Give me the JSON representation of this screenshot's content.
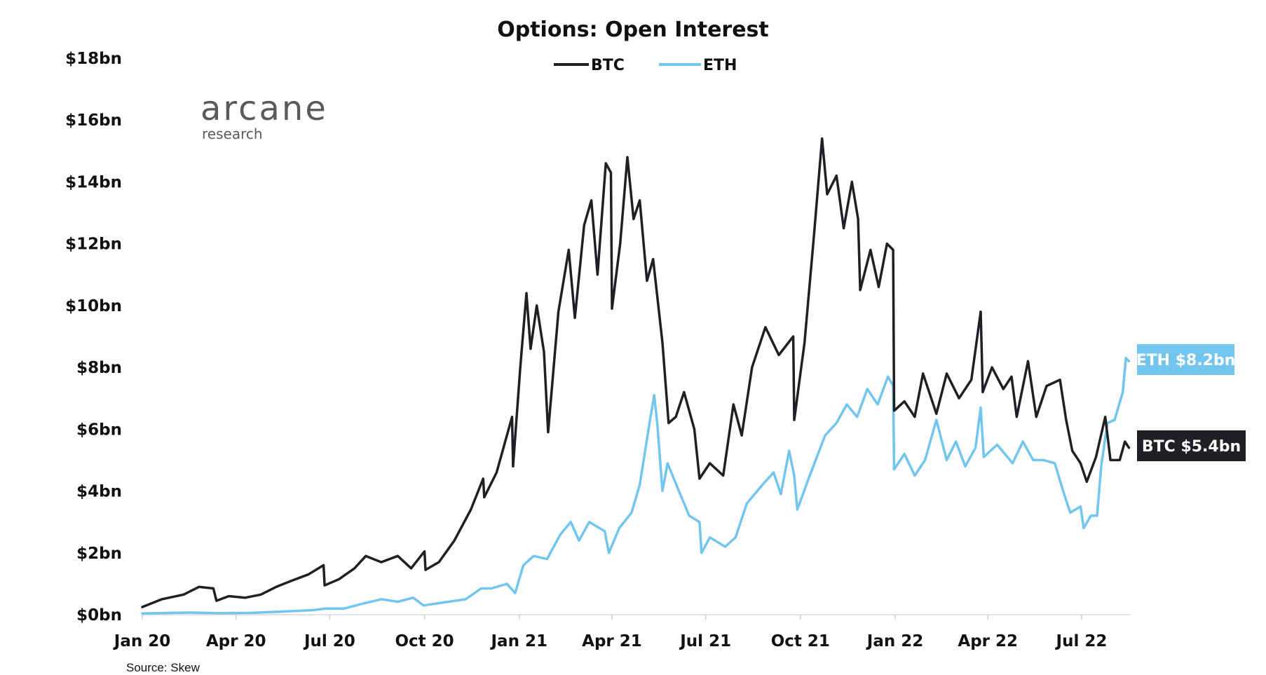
{
  "chart_data": {
    "type": "line",
    "title": "Options: Open Interest",
    "xlabel": "",
    "ylabel": "",
    "x_tick_labels": [
      "Jan 20",
      "Apr 20",
      "Jul 20",
      "Oct 20",
      "Jan 21",
      "Apr 21",
      "Jul 21",
      "Oct 21",
      "Jan 22",
      "Apr 22",
      "Jul 22"
    ],
    "y_tick_labels": [
      "$0bn",
      "$2bn",
      "$4bn",
      "$6bn",
      "$8bn",
      "$10bn",
      "$12bn",
      "$14bn",
      "$16bn",
      "$18bn"
    ],
    "y_ticks": [
      0,
      2,
      4,
      6,
      8,
      10,
      12,
      14,
      16,
      18
    ],
    "ylim": [
      0,
      18
    ],
    "xlim": [
      "2020-01-01",
      "2022-08-17"
    ],
    "grid": false,
    "legend_position": "top-center",
    "series": [
      {
        "name": "BTC",
        "color": "#1f2024",
        "end_label": "BTC $5.4bn",
        "points": [
          [
            "2020-01-01",
            0.25
          ],
          [
            "2020-01-20",
            0.5
          ],
          [
            "2020-02-10",
            0.65
          ],
          [
            "2020-02-25",
            0.9
          ],
          [
            "2020-03-10",
            0.85
          ],
          [
            "2020-03-13",
            0.45
          ],
          [
            "2020-03-25",
            0.6
          ],
          [
            "2020-04-10",
            0.55
          ],
          [
            "2020-04-25",
            0.65
          ],
          [
            "2020-05-10",
            0.9
          ],
          [
            "2020-05-25",
            1.1
          ],
          [
            "2020-06-10",
            1.3
          ],
          [
            "2020-06-25",
            1.6
          ],
          [
            "2020-06-26",
            0.95
          ],
          [
            "2020-07-10",
            1.15
          ],
          [
            "2020-07-25",
            1.5
          ],
          [
            "2020-08-05",
            1.9
          ],
          [
            "2020-08-20",
            1.7
          ],
          [
            "2020-09-05",
            1.9
          ],
          [
            "2020-09-18",
            1.5
          ],
          [
            "2020-10-01",
            2.05
          ],
          [
            "2020-10-02",
            1.45
          ],
          [
            "2020-10-15",
            1.7
          ],
          [
            "2020-10-30",
            2.4
          ],
          [
            "2020-11-15",
            3.4
          ],
          [
            "2020-11-27",
            4.4
          ],
          [
            "2020-11-28",
            3.8
          ],
          [
            "2020-12-10",
            4.6
          ],
          [
            "2020-12-25",
            6.4
          ],
          [
            "2020-12-26",
            4.8
          ],
          [
            "2021-01-02",
            8.0
          ],
          [
            "2021-01-08",
            10.4
          ],
          [
            "2021-01-12",
            8.6
          ],
          [
            "2021-01-18",
            10.0
          ],
          [
            "2021-01-25",
            8.5
          ],
          [
            "2021-01-29",
            5.9
          ],
          [
            "2021-02-08",
            9.8
          ],
          [
            "2021-02-18",
            11.8
          ],
          [
            "2021-02-24",
            9.6
          ],
          [
            "2021-03-05",
            12.6
          ],
          [
            "2021-03-12",
            13.4
          ],
          [
            "2021-03-18",
            11.0
          ],
          [
            "2021-03-26",
            14.6
          ],
          [
            "2021-03-31",
            14.3
          ],
          [
            "2021-04-01",
            9.9
          ],
          [
            "2021-04-09",
            12.0
          ],
          [
            "2021-04-16",
            14.8
          ],
          [
            "2021-04-22",
            12.8
          ],
          [
            "2021-04-28",
            13.4
          ],
          [
            "2021-05-05",
            10.8
          ],
          [
            "2021-05-11",
            11.5
          ],
          [
            "2021-05-20",
            8.8
          ],
          [
            "2021-05-26",
            6.2
          ],
          [
            "2021-06-02",
            6.4
          ],
          [
            "2021-06-10",
            7.2
          ],
          [
            "2021-06-20",
            6.0
          ],
          [
            "2021-06-25",
            4.4
          ],
          [
            "2021-07-05",
            4.9
          ],
          [
            "2021-07-18",
            4.5
          ],
          [
            "2021-07-28",
            6.8
          ],
          [
            "2021-08-05",
            5.8
          ],
          [
            "2021-08-15",
            8.0
          ],
          [
            "2021-08-28",
            9.3
          ],
          [
            "2021-09-10",
            8.4
          ],
          [
            "2021-09-24",
            9.0
          ],
          [
            "2021-09-25",
            6.3
          ],
          [
            "2021-10-05",
            8.8
          ],
          [
            "2021-10-14",
            12.2
          ],
          [
            "2021-10-22",
            15.4
          ],
          [
            "2021-10-27",
            13.6
          ],
          [
            "2021-11-05",
            14.2
          ],
          [
            "2021-11-12",
            12.5
          ],
          [
            "2021-11-20",
            14.0
          ],
          [
            "2021-11-26",
            12.8
          ],
          [
            "2021-11-28",
            10.5
          ],
          [
            "2021-12-08",
            11.8
          ],
          [
            "2021-12-16",
            10.6
          ],
          [
            "2021-12-24",
            12.0
          ],
          [
            "2021-12-30",
            11.8
          ],
          [
            "2021-12-31",
            6.6
          ],
          [
            "2022-01-10",
            6.9
          ],
          [
            "2022-01-20",
            6.4
          ],
          [
            "2022-01-28",
            7.8
          ],
          [
            "2022-02-10",
            6.5
          ],
          [
            "2022-02-20",
            7.8
          ],
          [
            "2022-03-04",
            7.0
          ],
          [
            "2022-03-16",
            7.6
          ],
          [
            "2022-03-25",
            9.8
          ],
          [
            "2022-03-27",
            7.2
          ],
          [
            "2022-04-05",
            8.0
          ],
          [
            "2022-04-16",
            7.3
          ],
          [
            "2022-04-24",
            7.7
          ],
          [
            "2022-04-29",
            6.4
          ],
          [
            "2022-05-10",
            8.2
          ],
          [
            "2022-05-18",
            6.4
          ],
          [
            "2022-05-28",
            7.4
          ],
          [
            "2022-06-10",
            7.6
          ],
          [
            "2022-06-16",
            6.3
          ],
          [
            "2022-06-22",
            5.3
          ],
          [
            "2022-06-30",
            4.9
          ],
          [
            "2022-07-06",
            4.3
          ],
          [
            "2022-07-15",
            5.1
          ],
          [
            "2022-07-24",
            6.4
          ],
          [
            "2022-07-29",
            5.0
          ],
          [
            "2022-08-07",
            5.0
          ],
          [
            "2022-08-12",
            5.6
          ],
          [
            "2022-08-16",
            5.4
          ]
        ]
      },
      {
        "name": "ETH",
        "color": "#72c5ee",
        "end_label": "ETH $8.2bn",
        "points": [
          [
            "2020-01-01",
            0.04
          ],
          [
            "2020-02-15",
            0.07
          ],
          [
            "2020-03-15",
            0.05
          ],
          [
            "2020-04-15",
            0.06
          ],
          [
            "2020-05-15",
            0.1
          ],
          [
            "2020-06-15",
            0.15
          ],
          [
            "2020-06-27",
            0.2
          ],
          [
            "2020-07-15",
            0.2
          ],
          [
            "2020-08-01",
            0.35
          ],
          [
            "2020-08-20",
            0.5
          ],
          [
            "2020-09-05",
            0.42
          ],
          [
            "2020-09-20",
            0.55
          ],
          [
            "2020-09-30",
            0.3
          ],
          [
            "2020-10-20",
            0.4
          ],
          [
            "2020-11-10",
            0.5
          ],
          [
            "2020-11-25",
            0.85
          ],
          [
            "2020-12-05",
            0.85
          ],
          [
            "2020-12-20",
            1.0
          ],
          [
            "2020-12-28",
            0.7
          ],
          [
            "2021-01-05",
            1.6
          ],
          [
            "2021-01-15",
            1.9
          ],
          [
            "2021-01-28",
            1.8
          ],
          [
            "2021-02-10",
            2.6
          ],
          [
            "2021-02-20",
            3.0
          ],
          [
            "2021-02-28",
            2.4
          ],
          [
            "2021-03-10",
            3.0
          ],
          [
            "2021-03-25",
            2.7
          ],
          [
            "2021-03-29",
            2.0
          ],
          [
            "2021-04-08",
            2.8
          ],
          [
            "2021-04-20",
            3.3
          ],
          [
            "2021-04-28",
            4.2
          ],
          [
            "2021-05-08",
            6.3
          ],
          [
            "2021-05-12",
            7.1
          ],
          [
            "2021-05-15",
            6.2
          ],
          [
            "2021-05-20",
            4.0
          ],
          [
            "2021-05-25",
            4.9
          ],
          [
            "2021-06-05",
            4.0
          ],
          [
            "2021-06-15",
            3.2
          ],
          [
            "2021-06-25",
            3.0
          ],
          [
            "2021-06-27",
            2.0
          ],
          [
            "2021-07-05",
            2.5
          ],
          [
            "2021-07-20",
            2.2
          ],
          [
            "2021-07-30",
            2.5
          ],
          [
            "2021-08-10",
            3.6
          ],
          [
            "2021-08-25",
            4.2
          ],
          [
            "2021-09-05",
            4.6
          ],
          [
            "2021-09-12",
            3.9
          ],
          [
            "2021-09-20",
            5.3
          ],
          [
            "2021-09-25",
            4.5
          ],
          [
            "2021-09-28",
            3.4
          ],
          [
            "2021-10-10",
            4.5
          ],
          [
            "2021-10-25",
            5.8
          ],
          [
            "2021-11-05",
            6.2
          ],
          [
            "2021-11-15",
            6.8
          ],
          [
            "2021-11-25",
            6.4
          ],
          [
            "2021-12-05",
            7.3
          ],
          [
            "2021-12-15",
            6.8
          ],
          [
            "2021-12-25",
            7.7
          ],
          [
            "2021-12-30",
            7.4
          ],
          [
            "2021-12-31",
            4.7
          ],
          [
            "2022-01-10",
            5.2
          ],
          [
            "2022-01-20",
            4.5
          ],
          [
            "2022-01-30",
            5.0
          ],
          [
            "2022-02-10",
            6.3
          ],
          [
            "2022-02-20",
            5.0
          ],
          [
            "2022-03-01",
            5.6
          ],
          [
            "2022-03-10",
            4.8
          ],
          [
            "2022-03-20",
            5.4
          ],
          [
            "2022-03-25",
            6.7
          ],
          [
            "2022-03-28",
            5.1
          ],
          [
            "2022-04-10",
            5.5
          ],
          [
            "2022-04-25",
            4.9
          ],
          [
            "2022-05-05",
            5.6
          ],
          [
            "2022-05-15",
            5.0
          ],
          [
            "2022-05-25",
            5.0
          ],
          [
            "2022-06-05",
            4.9
          ],
          [
            "2022-06-14",
            3.9
          ],
          [
            "2022-06-20",
            3.3
          ],
          [
            "2022-06-30",
            3.5
          ],
          [
            "2022-07-03",
            2.8
          ],
          [
            "2022-07-10",
            3.2
          ],
          [
            "2022-07-16",
            3.2
          ],
          [
            "2022-07-20",
            4.8
          ],
          [
            "2022-07-26",
            6.2
          ],
          [
            "2022-08-02",
            6.3
          ],
          [
            "2022-08-10",
            7.2
          ],
          [
            "2022-08-13",
            8.3
          ],
          [
            "2022-08-16",
            8.2
          ]
        ]
      }
    ]
  },
  "logo": {
    "main": "arcane",
    "sub": "research"
  },
  "source": "Source: Skew"
}
